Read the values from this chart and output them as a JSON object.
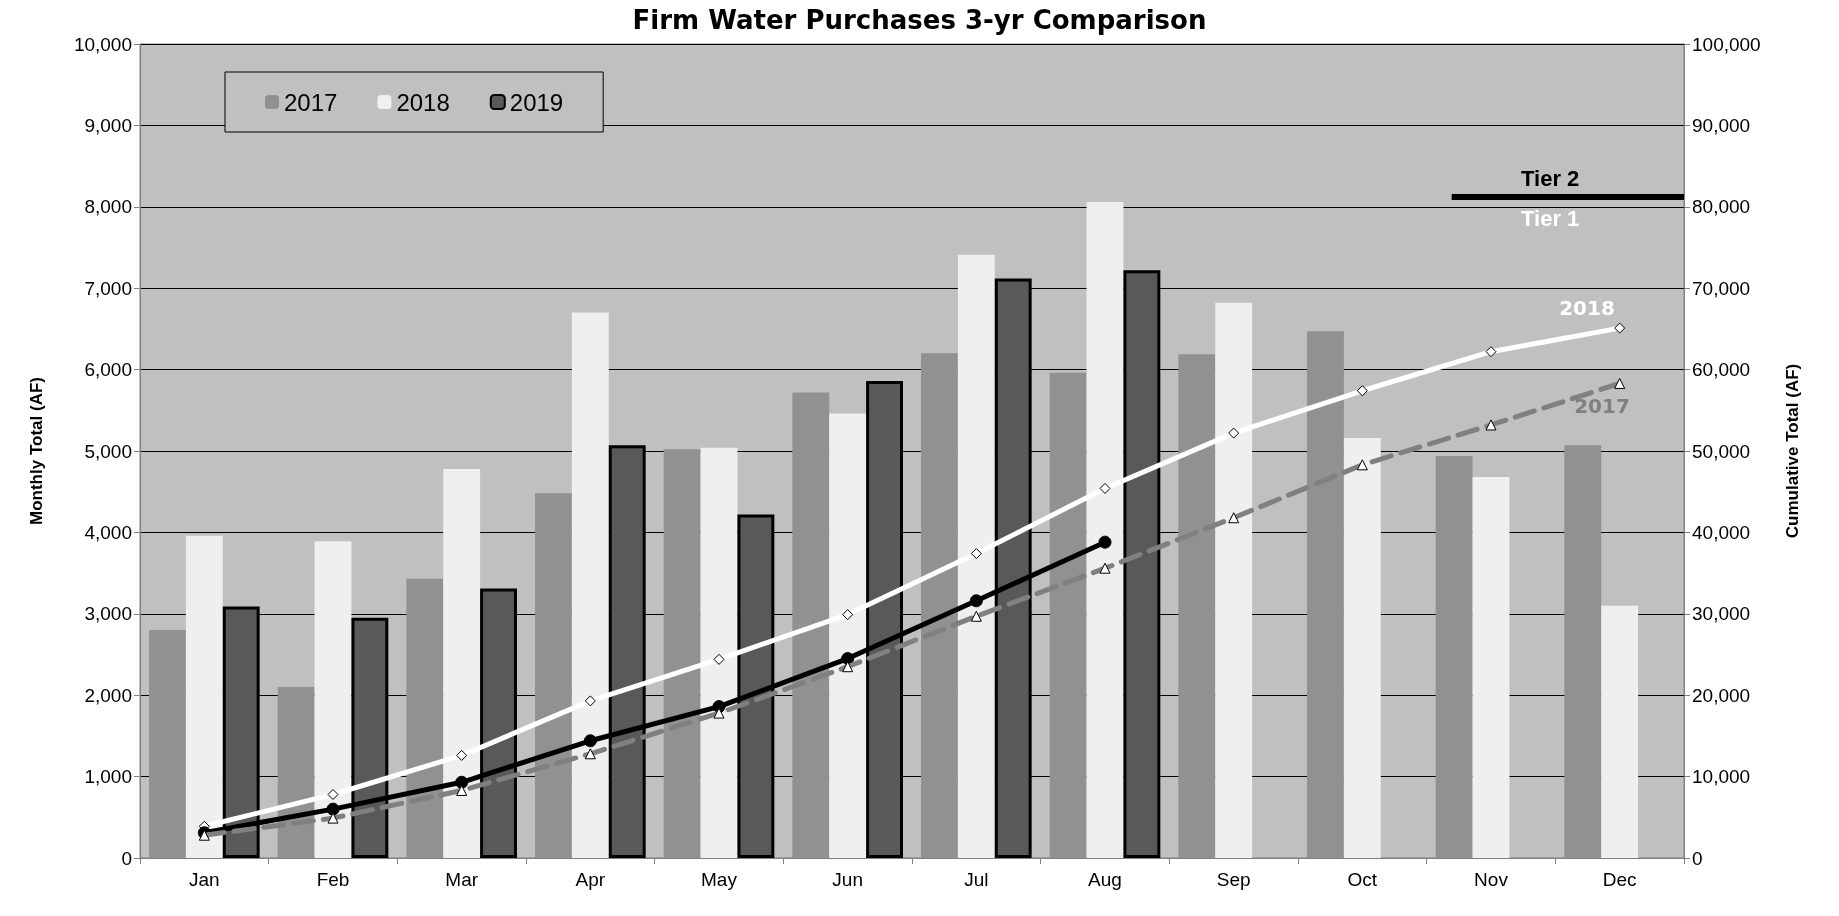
{
  "chart_data": {
    "type": "bar",
    "title": "Firm Water Purchases 3-yr Comparison",
    "ylabel": "Monthly Total (AF)",
    "y2label": "Cumulative Total (AF)",
    "categories": [
      "Jan",
      "Feb",
      "Mar",
      "Apr",
      "May",
      "Jun",
      "Jul",
      "Aug",
      "Sep",
      "Oct",
      "Nov",
      "Dec"
    ],
    "series": [
      {
        "name": "2017",
        "color": "#919191",
        "values": [
          2800,
          2100,
          3430,
          4480,
          5020,
          5720,
          6200,
          5960,
          6190,
          6470,
          4940,
          5070
        ]
      },
      {
        "name": "2018",
        "color": "#efefef",
        "values": [
          3960,
          3890,
          4780,
          6700,
          5040,
          5460,
          7410,
          8060,
          6820,
          5160,
          4680,
          3100
        ]
      },
      {
        "name": "2019",
        "color": "#595959",
        "values": [
          3090,
          2950,
          3310,
          5070,
          4220,
          5860,
          7120,
          7220,
          null,
          null,
          null,
          null
        ]
      },
      {
        "name": "2018",
        "type": "line",
        "axis": "y2",
        "color": "#ffffff",
        "marker": "diamond",
        "line_style": "solid",
        "values": [
          3900,
          7800,
          12600,
          19300,
          24400,
          29900,
          37400,
          45400,
          52200,
          57400,
          62200,
          65100
        ]
      },
      {
        "name": "2017",
        "type": "line",
        "axis": "y2",
        "color": "#808080",
        "marker": "triangle",
        "line_style": "dashed",
        "values": [
          2800,
          4900,
          8300,
          12800,
          17800,
          23500,
          29700,
          35600,
          41800,
          48300,
          53200,
          58300
        ]
      },
      {
        "type": "line",
        "axis": "y2",
        "color": "#000000",
        "marker": "circle",
        "line_style": "solid",
        "values": [
          3100,
          6000,
          9300,
          14400,
          18600,
          24500,
          31600,
          38800,
          null,
          null,
          null,
          null
        ]
      }
    ],
    "ylim": [
      0,
      10000
    ],
    "yticks": [
      0,
      {
        "value": 1000,
        "label": "1,000"
      },
      {
        "value": 2000,
        "label": "2,000"
      },
      {
        "value": 3000,
        "label": "3,000"
      },
      {
        "value": 4000,
        "label": "4,000"
      },
      {
        "value": 5000,
        "label": "5,000"
      },
      {
        "value": 6000,
        "label": "6,000"
      },
      {
        "value": 7000,
        "label": "7,000"
      },
      {
        "value": 8000,
        "label": "8,000"
      },
      {
        "value": 9000,
        "label": "9,000"
      },
      {
        "value": 10000,
        "label": "10,000"
      }
    ],
    "y2lim": [
      0,
      100000
    ],
    "y2ticks": [
      0,
      {
        "value": 10000,
        "label": "10,000"
      },
      {
        "value": 20000,
        "label": "20,000"
      },
      {
        "value": 30000,
        "label": "30,000"
      },
      {
        "value": 40000,
        "label": "40,000"
      },
      {
        "value": 50000,
        "label": "50,000"
      },
      {
        "value": 60000,
        "label": "60,000"
      },
      {
        "value": 70000,
        "label": "70,000"
      },
      {
        "value": 80000,
        "label": "80,000"
      },
      {
        "value": 90000,
        "label": "90,000"
      },
      {
        "value": 100000,
        "label": "100,000"
      }
    ],
    "ref_lines": [
      {
        "axis": "y2",
        "value": 81200,
        "label": "Tier 2",
        "color": "#000000",
        "line_style": "solid"
      }
    ],
    "annotations": [
      "Tier 1"
    ],
    "grid": "y",
    "legend": "top left"
  }
}
